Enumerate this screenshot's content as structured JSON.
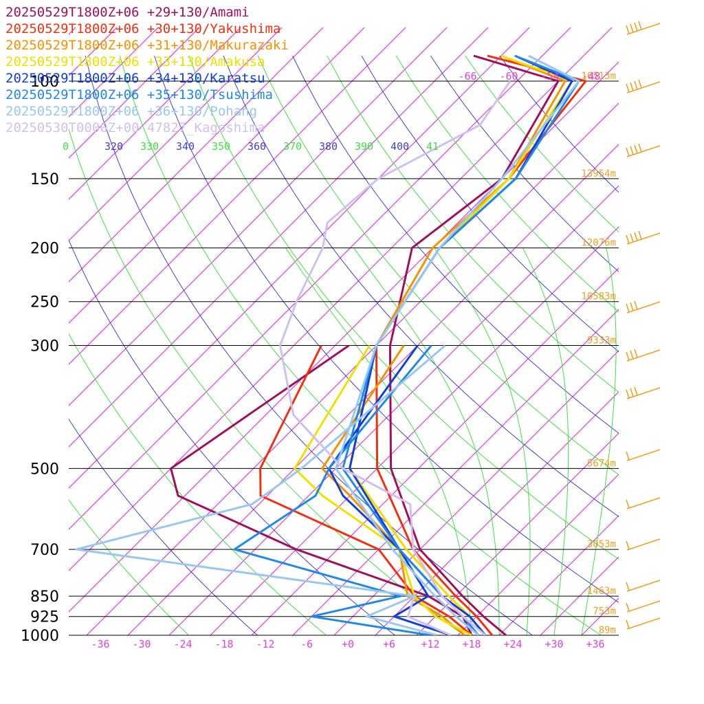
{
  "chart_data": {
    "type": "line",
    "title": "",
    "pressure_levels": [
      100,
      150,
      200,
      250,
      300,
      500,
      700,
      850,
      925,
      1000
    ],
    "height_labels": [
      {
        "p": 100,
        "label": "16513m"
      },
      {
        "p": 150,
        "label": "13954m"
      },
      {
        "p": 200,
        "label": "12076m"
      },
      {
        "p": 250,
        "label": "10583m"
      },
      {
        "p": 300,
        "label": "9333m"
      },
      {
        "p": 500,
        "label": "5674m"
      },
      {
        "p": 700,
        "label": "3053m"
      },
      {
        "p": 850,
        "label": "1463m"
      },
      {
        "p": 925,
        "label": "753m"
      },
      {
        "p": 1000,
        "label": "89m"
      }
    ],
    "x_ticks": [
      "-36",
      "-30",
      "-24",
      "-18",
      "-12",
      "-6",
      "+0",
      "+6",
      "+12",
      "+18",
      "+24",
      "+30",
      "+36"
    ],
    "top_isotherm_labels": [
      "-66",
      "-60",
      "-54",
      "-48"
    ],
    "theta_labels": [
      {
        "text": "0",
        "color": "#40e040"
      },
      {
        "text": "320",
        "color": "#4040d0"
      },
      {
        "text": "330",
        "color": "#40e040"
      },
      {
        "text": "340",
        "color": "#4040d0"
      },
      {
        "text": "350",
        "color": "#40e040"
      },
      {
        "text": "360",
        "color": "#4040d0"
      },
      {
        "text": "370",
        "color": "#40e040"
      },
      {
        "text": "380",
        "color": "#4040d0"
      },
      {
        "text": "390",
        "color": "#40e040"
      },
      {
        "text": "400",
        "color": "#4040d0"
      },
      {
        "text": "41",
        "color": "#40e040"
      }
    ],
    "series": [
      {
        "name": "20250529T1800Z+06 +29+130/Amami",
        "color": "#a0105a",
        "temp": [
          [
            90,
            -66
          ],
          [
            100,
            -50
          ],
          [
            150,
            -44
          ],
          [
            200,
            -47
          ],
          [
            300,
            -36
          ],
          [
            500,
            -18
          ],
          [
            700,
            -2
          ],
          [
            850,
            11
          ],
          [
            925,
            17
          ],
          [
            1000,
            23
          ]
        ],
        "dewp": [
          [
            300,
            -42
          ],
          [
            500,
            -50
          ],
          [
            560,
            -45
          ],
          [
            700,
            -20
          ],
          [
            850,
            6
          ],
          [
            925,
            14
          ],
          [
            1000,
            18
          ]
        ]
      },
      {
        "name": "20250529T1800Z+06 +30+130/Yakushima",
        "color": "#f03010",
        "temp": [
          [
            90,
            -64
          ],
          [
            100,
            -46
          ],
          [
            150,
            -43
          ],
          [
            200,
            -43
          ],
          [
            300,
            -38
          ],
          [
            500,
            -20
          ],
          [
            700,
            -3
          ],
          [
            850,
            10
          ],
          [
            925,
            16
          ],
          [
            1000,
            21
          ]
        ],
        "dewp": [
          [
            300,
            -46
          ],
          [
            500,
            -37
          ],
          [
            560,
            -33
          ],
          [
            700,
            -8
          ],
          [
            850,
            4
          ],
          [
            925,
            12
          ],
          [
            1000,
            18
          ]
        ]
      },
      {
        "name": "20250529T1800Z+06 +31+130/Makurazaki",
        "color": "#f89000",
        "temp": [
          [
            90,
            -62
          ],
          [
            100,
            -49
          ],
          [
            150,
            -43
          ],
          [
            200,
            -44
          ],
          [
            300,
            -38
          ],
          [
            500,
            -24
          ],
          [
            700,
            -4
          ],
          [
            850,
            9
          ],
          [
            925,
            15
          ],
          [
            1000,
            20
          ]
        ],
        "dewp": [
          [
            300,
            -34
          ],
          [
            500,
            -28
          ],
          [
            560,
            -20
          ],
          [
            700,
            -5
          ],
          [
            850,
            3
          ],
          [
            925,
            11
          ],
          [
            1000,
            17
          ]
        ]
      },
      {
        "name": "20250529T1800Z+06 +33+130/Amakusa",
        "color": "#f0e000",
        "temp": [
          [
            90,
            -62
          ],
          [
            100,
            -48
          ],
          [
            150,
            -43
          ],
          [
            200,
            -43
          ],
          [
            300,
            -38
          ],
          [
            500,
            -24
          ],
          [
            700,
            -4
          ],
          [
            850,
            9
          ],
          [
            925,
            15
          ],
          [
            1000,
            20
          ]
        ],
        "dewp": [
          [
            300,
            -39
          ],
          [
            500,
            -32
          ],
          [
            560,
            -24
          ],
          [
            700,
            -5
          ],
          [
            850,
            4
          ],
          [
            925,
            10
          ],
          [
            1000,
            18
          ]
        ]
      },
      {
        "name": "20250529T1800Z+06 +34+130/Karatsu",
        "color": "#1040d8",
        "temp": [
          [
            90,
            -60
          ],
          [
            100,
            -48
          ],
          [
            150,
            -42
          ],
          [
            200,
            -43
          ],
          [
            300,
            -38
          ],
          [
            500,
            -24
          ],
          [
            700,
            -5
          ],
          [
            850,
            8
          ],
          [
            925,
            15
          ],
          [
            1000,
            20
          ]
        ],
        "dewp": [
          [
            300,
            -32
          ],
          [
            500,
            -27
          ],
          [
            560,
            -21
          ],
          [
            700,
            -5
          ],
          [
            850,
            6
          ],
          [
            925,
            4
          ],
          [
            1000,
            15
          ]
        ]
      },
      {
        "name": "20250529T1800Z+06 +35+130/Tsushima",
        "color": "#2088e8",
        "temp": [
          [
            90,
            -60
          ],
          [
            100,
            -47
          ],
          [
            150,
            -42
          ],
          [
            200,
            -43
          ],
          [
            300,
            -38
          ],
          [
            500,
            -25
          ],
          [
            700,
            -5
          ],
          [
            850,
            8
          ],
          [
            925,
            14
          ],
          [
            1000,
            19
          ]
        ],
        "dewp": [
          [
            300,
            -30
          ],
          [
            500,
            -27
          ],
          [
            560,
            -25
          ],
          [
            700,
            -29
          ],
          [
            850,
            2
          ],
          [
            925,
            -8
          ],
          [
            1000,
            12
          ]
        ]
      },
      {
        "name": "20250529T1800Z+06 +36+130/Pohang",
        "color": "#98c8f0",
        "temp": [
          [
            90,
            -58
          ],
          [
            100,
            -47
          ],
          [
            150,
            -44
          ],
          [
            200,
            -43
          ],
          [
            300,
            -38
          ],
          [
            500,
            -26
          ],
          [
            700,
            -6
          ],
          [
            850,
            7
          ],
          [
            925,
            13
          ],
          [
            1000,
            19
          ]
        ],
        "dewp": [
          [
            300,
            -28
          ],
          [
            500,
            -31
          ],
          [
            580,
            -33
          ],
          [
            700,
            -52
          ],
          [
            850,
            4
          ],
          [
            925,
            0
          ],
          [
            1000,
            13
          ]
        ]
      },
      {
        "name": "20250530T0000Z+00 47827_Kagoshima",
        "color": "#d0c0f0",
        "temp": [
          [
            100,
            -57
          ],
          [
            120,
            -55
          ],
          [
            150,
            -62
          ],
          [
            180,
            -63
          ],
          [
            200,
            -60
          ],
          [
            250,
            -56
          ],
          [
            300,
            -52
          ],
          [
            400,
            -40
          ],
          [
            500,
            -25
          ],
          [
            580,
            -10
          ],
          [
            700,
            -3
          ],
          [
            850,
            8
          ],
          [
            925,
            14
          ],
          [
            1000,
            20
          ]
        ],
        "dewp": [
          [
            850,
            4
          ],
          [
            925,
            6
          ],
          [
            1000,
            15
          ]
        ]
      }
    ]
  }
}
